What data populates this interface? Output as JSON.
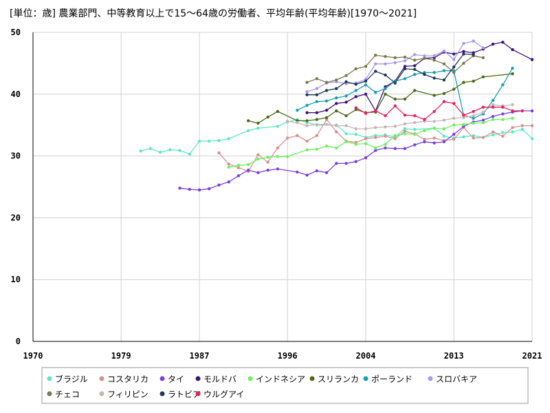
{
  "chart_data": {
    "type": "line",
    "title": "[単位：歳] 農業部門、中等教育以上で15～64歳の労働者、平均年齢(平均年齢)[1970～2021]",
    "xlabel": "",
    "ylabel": "",
    "xlim": [
      1970,
      2021
    ],
    "ylim": [
      0,
      50
    ],
    "xticks": [
      1970,
      1979,
      1987,
      1996,
      2004,
      2013,
      2021
    ],
    "yticks": [
      0,
      10,
      20,
      30,
      40,
      50
    ],
    "grid": true,
    "legend": "bottom",
    "series": [
      {
        "name": "ブラジル",
        "color": "#5ee8c0",
        "x": [
          1981,
          1982,
          1983,
          1984,
          1985,
          1986,
          1987,
          1988,
          1989,
          1990,
          1992,
          1993,
          1995,
          1996,
          1997,
          1998,
          1999,
          2001,
          2002,
          2003,
          2004,
          2005,
          2006,
          2007,
          2008,
          2009,
          2011,
          2012,
          2013,
          2014,
          2015,
          2016,
          2017,
          2018,
          2019,
          2020,
          2021
        ],
        "y": [
          30.8,
          31.2,
          30.6,
          31.0,
          30.9,
          30.3,
          32.4,
          32.4,
          32.5,
          32.8,
          34.1,
          34.5,
          34.8,
          35.5,
          35.9,
          35.4,
          35.0,
          35.0,
          33.6,
          33.5,
          33.0,
          33.3,
          33.4,
          33.1,
          34.4,
          34.3,
          34.5,
          33.2,
          32.9,
          33.1,
          33.3,
          33.0,
          33.4,
          33.8,
          33.9,
          34.3,
          32.8
        ]
      },
      {
        "name": "コスタリカ",
        "color": "#d4928e",
        "x": [
          1989,
          1990,
          1991,
          1992,
          1993,
          1994,
          1995,
          1996,
          1997,
          1998,
          1999,
          2000,
          2001,
          2002,
          2003,
          2004,
          2005,
          2006,
          2007,
          2008,
          2009,
          2010,
          2011,
          2012,
          2013,
          2014,
          2015,
          2016,
          2017,
          2018,
          2019,
          2020,
          2021
        ],
        "y": [
          30.5,
          28.7,
          28.1,
          27.5,
          30.2,
          29.0,
          31.3,
          32.9,
          33.3,
          32.4,
          33.3,
          35.9,
          33.9,
          32.4,
          32.2,
          32.8,
          33.0,
          33.2,
          32.8,
          34.0,
          33.6,
          32.7,
          32.9,
          32.5,
          32.7,
          34.6,
          32.9,
          33.0,
          33.9,
          33.2,
          34.6,
          34.9,
          34.9
        ]
      },
      {
        "name": "タイ",
        "color": "#7b3fe0",
        "x": [
          1985,
          1986,
          1987,
          1988,
          1989,
          1990,
          1991,
          1992,
          1993,
          1994,
          1995,
          1997,
          1998,
          1999,
          2000,
          2001,
          2002,
          2003,
          2004,
          2005,
          2006,
          2007,
          2008,
          2009,
          2010,
          2011,
          2012,
          2013,
          2014,
          2015,
          2016,
          2017,
          2018,
          2019,
          2020,
          2021
        ],
        "y": [
          24.8,
          24.6,
          24.5,
          24.7,
          25.3,
          25.8,
          26.8,
          27.7,
          27.3,
          27.7,
          27.9,
          27.4,
          26.9,
          27.6,
          27.3,
          28.8,
          28.8,
          29.1,
          29.7,
          30.9,
          31.3,
          31.2,
          31.2,
          31.8,
          32.3,
          32.1,
          32.3,
          33.5,
          34.8,
          35.5,
          35.8,
          36.4,
          36.8,
          37.1,
          37.3,
          37.3
        ]
      },
      {
        "name": "モルドバ",
        "color": "#3d1278",
        "x": [
          1998,
          1999,
          2000,
          2001,
          2002,
          2003,
          2004,
          2005,
          2006,
          2007,
          2008,
          2009,
          2010,
          2011,
          2012,
          2013,
          2014,
          2015,
          2016,
          2017,
          2018,
          2019,
          2021
        ],
        "y": [
          37.0,
          37.0,
          37.4,
          38.5,
          38.7,
          39.6,
          40.0,
          37.3,
          41.2,
          42.1,
          44.5,
          44.6,
          45.8,
          45.9,
          46.8,
          46.5,
          46.9,
          46.7,
          47.3,
          48.1,
          48.4,
          47.2,
          45.6
        ]
      },
      {
        "name": "インドネシア",
        "color": "#6ef060",
        "x": [
          1990,
          1991,
          1992,
          1993,
          1994,
          1995,
          1996,
          1998,
          1999,
          2000,
          2001,
          2002,
          2003,
          2004,
          2005,
          2006,
          2007,
          2008,
          2009,
          2010,
          2011,
          2012,
          2013,
          2014,
          2015,
          2016,
          2017,
          2018,
          2019
        ],
        "y": [
          28.2,
          28.5,
          28.6,
          29.5,
          29.8,
          29.9,
          29.9,
          31.0,
          31.1,
          31.6,
          31.3,
          32.3,
          31.9,
          32.0,
          31.3,
          31.9,
          33.3,
          33.6,
          33.5,
          34.1,
          34.5,
          34.4,
          35.0,
          35.1,
          35.3,
          35.4,
          35.9,
          35.9,
          36.1
        ]
      },
      {
        "name": "スリランカ",
        "color": "#4c6b18",
        "x": [
          1992,
          1993,
          1994,
          1995,
          1997,
          1998,
          1999,
          2000,
          2001,
          2002,
          2003,
          2004,
          2005,
          2006,
          2007,
          2008,
          2009,
          2011,
          2012,
          2013,
          2014,
          2015,
          2016,
          2019
        ],
        "y": [
          35.7,
          35.3,
          36.3,
          37.2,
          35.7,
          35.7,
          35.9,
          36.2,
          37.3,
          36.5,
          37.5,
          37.0,
          37.1,
          40.0,
          39.2,
          39.2,
          40.6,
          39.8,
          40.1,
          40.8,
          41.9,
          42.1,
          42.8,
          43.3
        ]
      },
      {
        "name": "ポーランド",
        "color": "#16a0b0",
        "x": [
          1997,
          1998,
          1999,
          2000,
          2001,
          2002,
          2003,
          2004,
          2005,
          2006,
          2007,
          2008,
          2009,
          2010,
          2011,
          2012,
          2013,
          2014,
          2015,
          2016,
          2017,
          2018,
          2019
        ],
        "y": [
          37.4,
          38.2,
          38.8,
          38.9,
          39.4,
          39.7,
          40.6,
          41.5,
          40.3,
          40.9,
          42.1,
          42.5,
          43.2,
          43.5,
          43.5,
          43.8,
          43.8,
          36.6,
          36.1,
          36.8,
          39.0,
          41.5,
          44.2
        ]
      },
      {
        "name": "スロバキア",
        "color": "#a898f0",
        "x": [
          1998,
          1999,
          2000,
          2001,
          2002,
          2003,
          2004,
          2005,
          2006,
          2007,
          2008,
          2009,
          2010,
          2011,
          2012,
          2013,
          2014,
          2015,
          2016
        ],
        "y": [
          40.4,
          40.9,
          41.8,
          42.0,
          41.7,
          41.8,
          42.4,
          44.9,
          44.9,
          45.1,
          45.4,
          46.4,
          46.2,
          46.2,
          47.0,
          45.6,
          48.2,
          48.6,
          47.5
        ]
      },
      {
        "name": "チェコ",
        "color": "#7a7a50",
        "x": [
          1998,
          1999,
          2000,
          2001,
          2002,
          2003,
          2004,
          2005,
          2006,
          2007,
          2008,
          2009,
          2010,
          2011,
          2012,
          2013,
          2014,
          2015,
          2016
        ],
        "y": [
          41.9,
          42.5,
          41.9,
          42.3,
          43.0,
          44.1,
          44.5,
          46.3,
          46.1,
          45.9,
          46.0,
          45.5,
          45.8,
          45.5,
          44.9,
          43.5,
          45.0,
          46.2,
          45.9
        ]
      },
      {
        "name": "フィリピン",
        "color": "#c8b4b4",
        "x": [
          1996,
          1997,
          1998,
          1999,
          2000,
          2001,
          2002,
          2003,
          2004,
          2005,
          2006,
          2007,
          2008,
          2009,
          2010,
          2011,
          2012,
          2013,
          2014,
          2015,
          2016,
          2017,
          2018,
          2019
        ],
        "y": [
          35.6,
          35.4,
          34.9,
          35.1,
          35.1,
          34.9,
          34.9,
          34.4,
          34.4,
          34.6,
          34.7,
          34.8,
          35.2,
          35.4,
          35.6,
          35.6,
          35.8,
          36.1,
          36.2,
          36.5,
          37.1,
          38.3,
          38.1,
          38.3
        ]
      },
      {
        "name": "ラトビア",
        "color": "#1e3a5a",
        "x": [
          1998,
          1999,
          2000,
          2001,
          2002,
          2003,
          2004,
          2005,
          2006,
          2007,
          2008,
          2009,
          2010,
          2011,
          2012,
          2013,
          2014,
          2015
        ],
        "y": [
          39.9,
          39.9,
          40.6,
          40.9,
          42.0,
          41.6,
          42.1,
          43.7,
          43.1,
          41.8,
          44.1,
          44.0,
          43.2,
          42.6,
          42.3,
          44.4,
          46.5,
          46.4
        ]
      },
      {
        "name": "ウルグアイ",
        "color": "#e8205a",
        "x": [
          2003,
          2004,
          2005,
          2006,
          2007,
          2008,
          2009,
          2010,
          2011,
          2012,
          2013,
          2014,
          2015,
          2016,
          2017,
          2018,
          2019,
          2020
        ],
        "y": [
          37.8,
          36.9,
          37.3,
          36.5,
          38.1,
          36.6,
          36.5,
          35.9,
          37.2,
          38.8,
          38.5,
          36.6,
          37.2,
          37.9,
          37.9,
          37.9,
          37.3,
          37.3
        ]
      }
    ]
  }
}
